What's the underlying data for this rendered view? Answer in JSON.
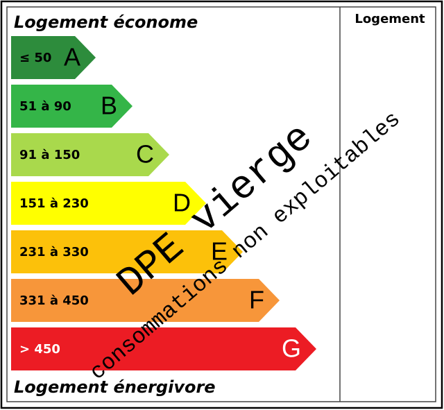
{
  "header": {
    "top": "Logement économe",
    "bottom": "Logement énergivore",
    "column": "Logement"
  },
  "classes": [
    {
      "range": "≤ 50",
      "letter": "A",
      "color": "#2d8c3c"
    },
    {
      "range": "51 à 90",
      "letter": "B",
      "color": "#34b548"
    },
    {
      "range": "91 à 150",
      "letter": "C",
      "color": "#a9d94c"
    },
    {
      "range": "151 à 230",
      "letter": "D",
      "color": "#ffff00"
    },
    {
      "range": "231 à 330",
      "letter": "E",
      "color": "#fcc10a"
    },
    {
      "range": "331 à 450",
      "letter": "F",
      "color": "#f7963a"
    },
    {
      "range": "> 450",
      "letter": "G",
      "color": "#ec1c24"
    }
  ],
  "overlay": {
    "main": "DPE vierge",
    "note": "consommations non exploitables"
  }
}
